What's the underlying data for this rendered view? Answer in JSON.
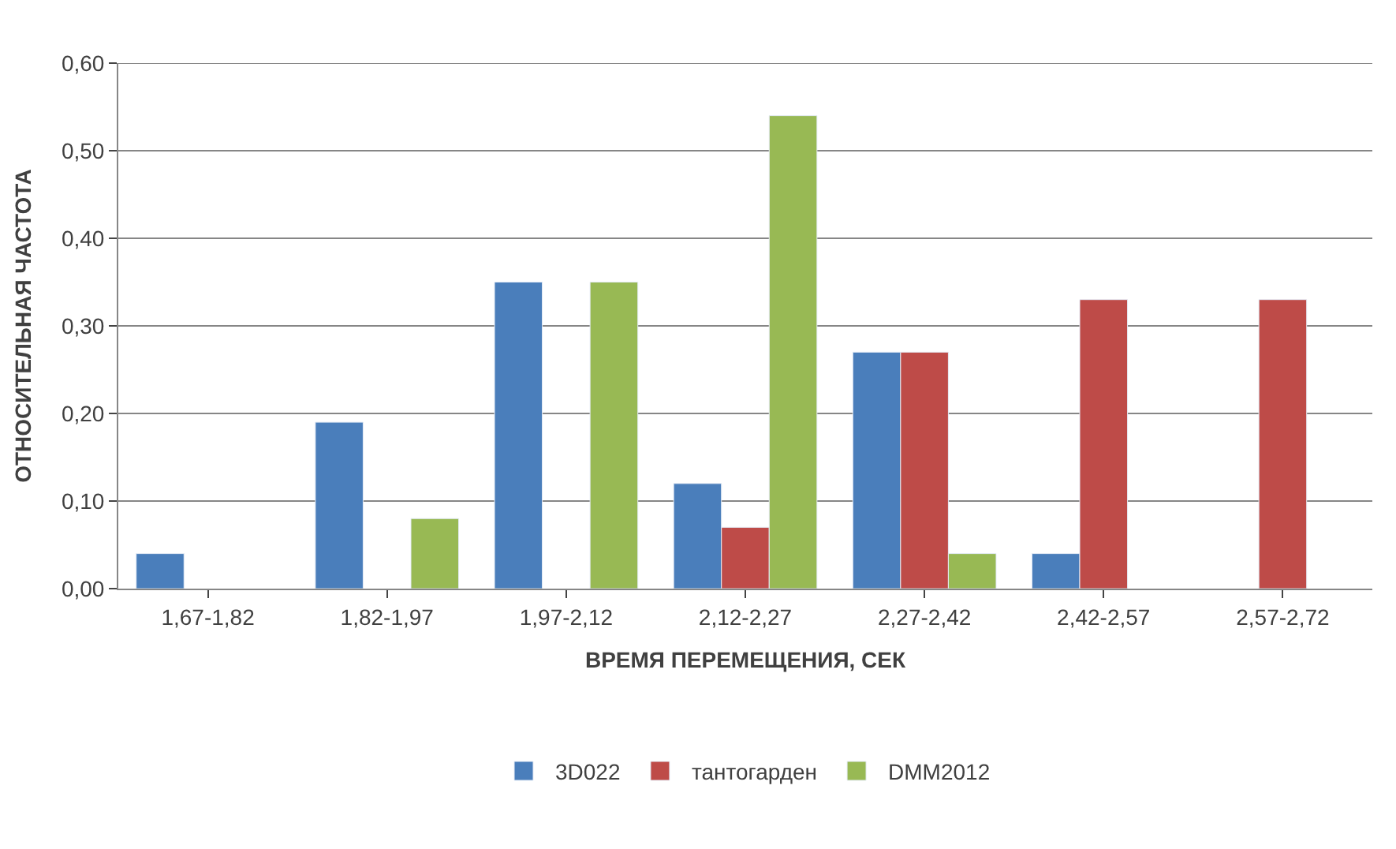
{
  "chart_data": {
    "type": "bar",
    "xlabel": "ВРЕМЯ ПЕРЕМЕЩЕНИЯ, СЕК",
    "ylabel": "ОТНОСИТЕЛЬНАЯ ЧАСТОТА",
    "categories": [
      "1,67-1,82",
      "1,82-1,97",
      "1,97-2,12",
      "2,12-2,27",
      "2,27-2,42",
      "2,42-2,57",
      "2,57-2,72"
    ],
    "series": [
      {
        "name": "3D022",
        "color": "#4a7ebb",
        "values": [
          0.04,
          0.19,
          0.35,
          0.12,
          0.27,
          0.04,
          null
        ]
      },
      {
        "name": "тантогарден",
        "color": "#be4b48",
        "values": [
          null,
          null,
          null,
          0.07,
          0.27,
          0.33,
          0.33
        ]
      },
      {
        "name": "DMM2012",
        "color": "#98b954",
        "values": [
          null,
          0.08,
          0.35,
          0.54,
          0.04,
          null,
          null
        ]
      }
    ],
    "ylim": [
      0,
      0.6
    ],
    "yticks": [
      {
        "value": 0,
        "label": "0,00"
      },
      {
        "value": 0.1,
        "label": "0,10"
      },
      {
        "value": 0.2,
        "label": "0,20"
      },
      {
        "value": 0.3,
        "label": "0,30"
      },
      {
        "value": 0.4,
        "label": "0,40"
      },
      {
        "value": 0.5,
        "label": "0,50"
      },
      {
        "value": 0.6,
        "label": "0,60"
      }
    ],
    "grid": "y",
    "legend": "bottom"
  }
}
